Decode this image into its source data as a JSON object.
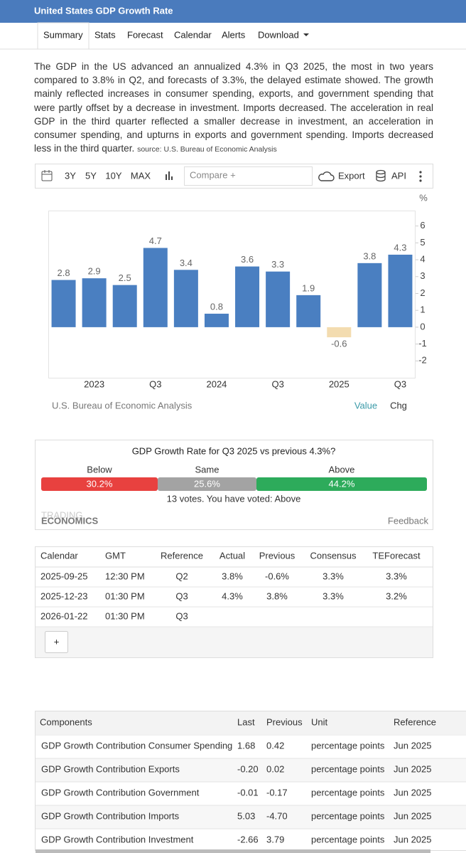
{
  "header": {
    "title": "United States GDP Growth Rate"
  },
  "nav": [
    "Summary",
    "Stats",
    "Forecast",
    "Calendar",
    "Alerts",
    "Download"
  ],
  "summary": {
    "text": "The GDP in the US advanced an annualized 4.3% in Q3 2025, the most in two years compared to 3.8% in Q2, and forecasts of 3.3%, the delayed estimate showed. The growth mainly reflected increases in consumer spending, exports, and government spending that were partly offset by a decrease in investment. Imports decreased. The acceleration in real GDP in the third quarter reflected a smaller decrease in investment, an acceleration in consumer spending, and upturns in exports and government spending. Imports decreased less in the third quarter.",
    "source": "source: U.S. Bureau of Economic Analysis"
  },
  "toolbar": {
    "ranges": [
      "3Y",
      "5Y",
      "10Y",
      "MAX"
    ],
    "compare": "Compare +",
    "export": "Export",
    "api": "API"
  },
  "chart_data": {
    "type": "bar",
    "unit": "%",
    "categories": [
      null,
      "2023",
      null,
      "Q3",
      null,
      "2024",
      null,
      "Q3",
      null,
      "2025",
      null,
      "Q3"
    ],
    "values": [
      2.8,
      2.9,
      2.5,
      4.7,
      3.4,
      0.8,
      3.6,
      3.3,
      1.9,
      -0.6,
      3.8,
      4.3
    ],
    "color": "#4a7fc1",
    "negative_color": "#f3dcb0",
    "ylim": [
      -3,
      7
    ],
    "yticks": [
      -2,
      -1,
      0,
      1,
      2,
      3,
      4,
      5,
      6
    ],
    "source": "U.S. Bureau of Economic Analysis",
    "toggles": [
      "Value",
      "Chg"
    ]
  },
  "poll": {
    "question": "GDP Growth Rate for Q3 2025 vs previous 4.3%?",
    "options": [
      "Below",
      "Same",
      "Above"
    ],
    "values": [
      30.2,
      25.6,
      44.2
    ],
    "value_labels": [
      "30.2%",
      "25.6%",
      "44.2%"
    ],
    "colors": [
      "#e8413f",
      "#a3a3a3",
      "#2dab5b"
    ],
    "votes": "13 votes. You have voted: Above",
    "logo": [
      "TRADING",
      "ECONOMICS"
    ],
    "feedback": "Feedback"
  },
  "calendar": {
    "columns": [
      "Calendar",
      "GMT",
      "Reference",
      "Actual",
      "Previous",
      "Consensus",
      "TEForecast"
    ],
    "rows": [
      [
        "2025-09-25",
        "12:30 PM",
        "Q2",
        "3.8%",
        "-0.6%",
        "3.3%",
        "3.3%"
      ],
      [
        "2025-12-23",
        "01:30 PM",
        "Q3",
        "4.3%",
        "3.8%",
        "3.3%",
        "3.2%"
      ],
      [
        "2026-01-22",
        "01:30 PM",
        "Q3"
      ]
    ],
    "add": "+"
  },
  "components": {
    "columns": [
      "Components",
      "Last",
      "Previous",
      "Unit",
      "Reference"
    ],
    "rows": [
      [
        "GDP Growth Contribution Consumer Spending",
        "1.68",
        "0.42",
        "percentage points",
        "Jun 2025"
      ],
      [
        "GDP Growth Contribution Exports",
        "-0.20",
        "0.02",
        "percentage points",
        "Jun 2025"
      ],
      [
        "GDP Growth Contribution Government",
        "-0.01",
        "-0.17",
        "percentage points",
        "Jun 2025"
      ],
      [
        "GDP Growth Contribution Imports",
        "5.03",
        "-4.70",
        "percentage points",
        "Jun 2025"
      ],
      [
        "GDP Growth Contribution Investment",
        "-2.66",
        "3.79",
        "percentage points",
        "Jun 2025"
      ]
    ]
  }
}
